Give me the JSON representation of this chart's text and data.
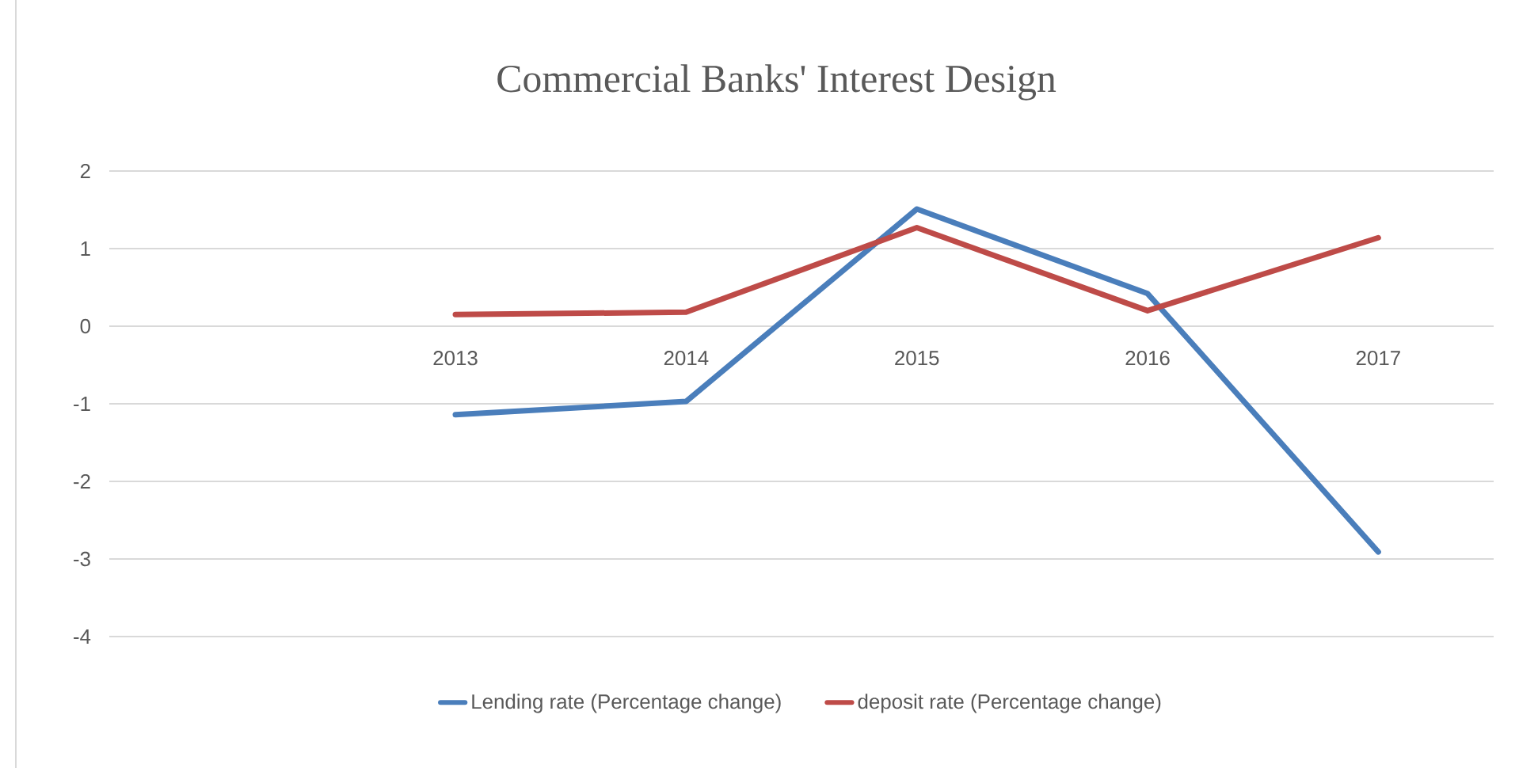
{
  "chart_data": {
    "type": "line",
    "title": "Commercial Banks' Interest Design",
    "categories": [
      null,
      "2013",
      "2014",
      "2015",
      "2016",
      "2017"
    ],
    "series": [
      {
        "name": "Lending rate (Percentage change)",
        "color": "#4a7ebb",
        "values": [
          null,
          -1.14,
          -0.97,
          1.51,
          0.42,
          -2.91
        ]
      },
      {
        "name": "deposit rate (Percentage change)",
        "color": "#be4b48",
        "values": [
          null,
          0.15,
          0.18,
          1.27,
          0.2,
          1.14
        ]
      }
    ],
    "ylim": [
      -4,
      2
    ],
    "yticks": [
      -4,
      -3,
      -2,
      -1,
      0,
      1,
      2
    ],
    "grid": "y",
    "legend": "bottom",
    "marker": "none",
    "line_style": "solid"
  }
}
